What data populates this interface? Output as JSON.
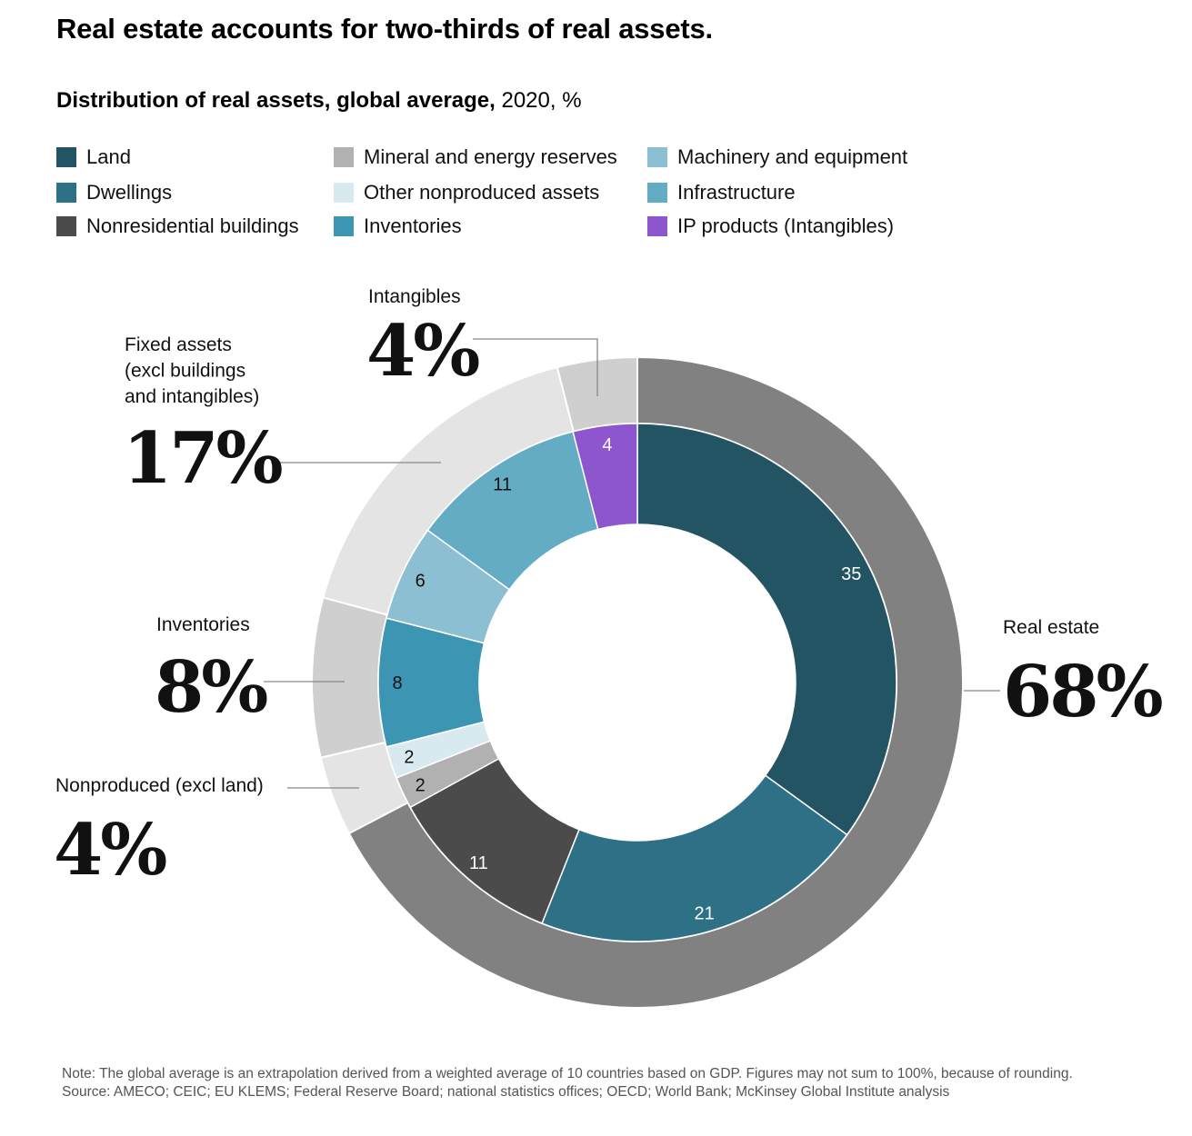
{
  "header": {
    "title": "Real estate accounts for two-thirds of real assets.",
    "subtitle_bold": "Distribution of real assets, global average,",
    "subtitle_rest": " 2020, %"
  },
  "legend": [
    {
      "label": "Land",
      "color": "#225464"
    },
    {
      "label": "Dwellings",
      "color": "#2e7085"
    },
    {
      "label": "Nonresidential buildings",
      "color": "#4b4b4b"
    },
    {
      "label": "Mineral and energy reserves",
      "color": "#b1b1b1"
    },
    {
      "label": "Other nonproduced assets",
      "color": "#d9e9f0"
    },
    {
      "label": "Inventories",
      "color": "#3c95b3"
    },
    {
      "label": "Machinery and equipment",
      "color": "#8cbfd1"
    },
    {
      "label": "Infrastructure",
      "color": "#64abc4"
    },
    {
      "label": "IP products (Intangibles)",
      "color": "#8d56cf"
    }
  ],
  "chart_data": {
    "type": "pie",
    "variant": "two-level donut",
    "direction": "clockwise from top",
    "inner_ring": [
      {
        "category": "Land",
        "value": 35,
        "label": "35",
        "color": "#225464",
        "label_color": "#ffffff"
      },
      {
        "category": "Dwellings",
        "value": 21,
        "label": "21",
        "color": "#2e7085",
        "label_color": "#ffffff"
      },
      {
        "category": "Nonresidential buildings",
        "value": 11,
        "label": "11",
        "color": "#4b4b4b",
        "label_color": "#ffffff"
      },
      {
        "category": "Mineral and energy reserves",
        "value": 2,
        "label": "2",
        "color": "#b1b1b1",
        "label_color": "#111111"
      },
      {
        "category": "Other nonproduced assets",
        "value": 2,
        "label": "2",
        "color": "#d9e9f0",
        "label_color": "#111111"
      },
      {
        "category": "Inventories",
        "value": 8,
        "label": "8",
        "color": "#3c95b3",
        "label_color": "#111111"
      },
      {
        "category": "Machinery and equipment",
        "value": 6,
        "label": "6",
        "color": "#8cbfd1",
        "label_color": "#111111"
      },
      {
        "category": "Infrastructure",
        "value": 11,
        "label": "11",
        "color": "#64abc4",
        "label_color": "#111111"
      },
      {
        "category": "IP products (Intangibles)",
        "value": 4,
        "label": "4",
        "color": "#8d56cf",
        "label_color": "#ffffff"
      }
    ],
    "outer_ring": [
      {
        "name": "Real estate",
        "value": 68,
        "label": "68%",
        "color": "#818181"
      },
      {
        "name": "Nonproduced (excl land)",
        "value": 4,
        "label": "4%",
        "color": "#e4e4e4"
      },
      {
        "name": "Inventories",
        "value": 8,
        "label": "8%",
        "color": "#cfcfcf"
      },
      {
        "name": "Fixed assets\n(excl buildings\nand intangibles)",
        "value": 17,
        "label": "17%",
        "color": "#e4e4e4"
      },
      {
        "name": "Intangibles",
        "value": 4,
        "label": "4%",
        "color": "#cfcfcf"
      }
    ]
  },
  "footer": {
    "note": "Note: The global average is an extrapolation derived from a weighted average of 10 countries based on GDP. Figures may not sum to 100%, because of rounding.",
    "source": "Source: AMECO; CEIC; EU KLEMS; Federal Reserve Board; national statistics offices; OECD; World Bank; McKinsey Global Institute analysis"
  }
}
